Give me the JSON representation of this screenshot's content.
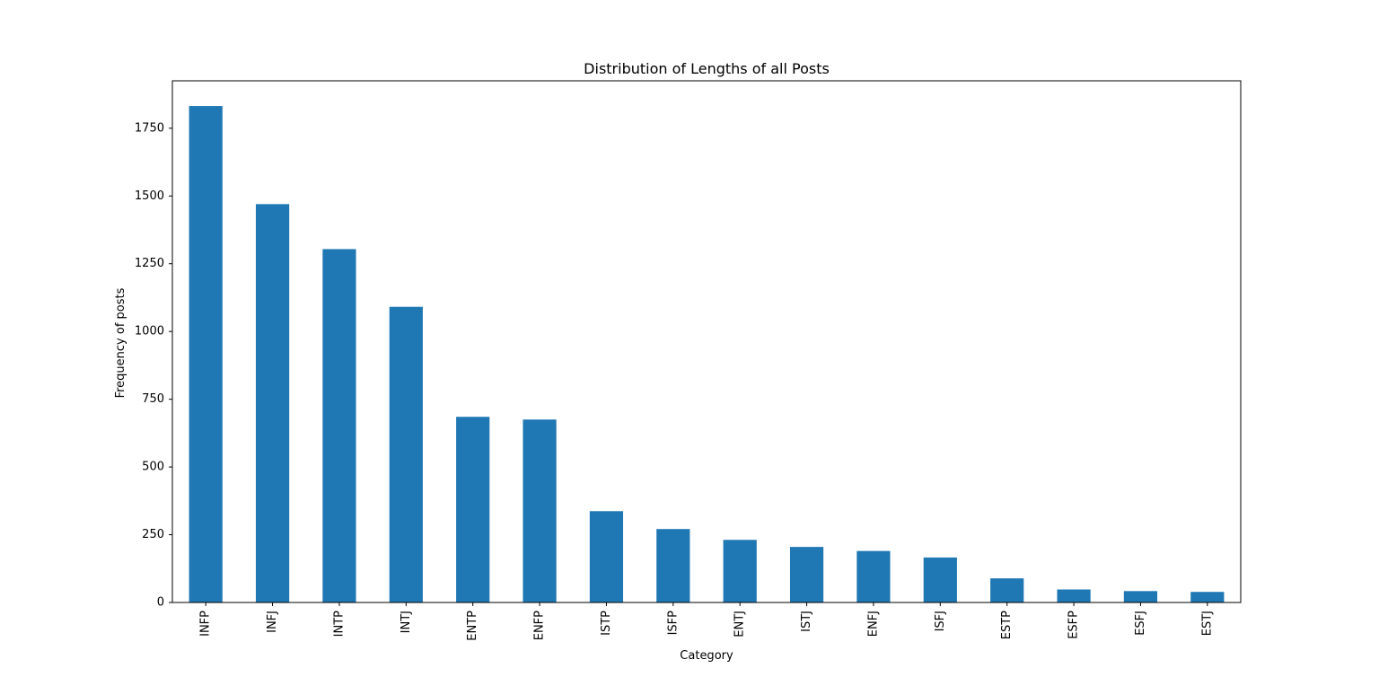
{
  "chart_data": {
    "type": "bar",
    "title": "Distribution of Lengths of all Posts",
    "xlabel": "Category",
    "ylabel": "Frequency of posts",
    "categories": [
      "INFP",
      "INFJ",
      "INTP",
      "INTJ",
      "ENTP",
      "ENFP",
      "ISTP",
      "ISFP",
      "ENTJ",
      "ISTJ",
      "ENFJ",
      "ISFJ",
      "ESTP",
      "ESFP",
      "ESFJ",
      "ESTJ"
    ],
    "values": [
      1832,
      1470,
      1304,
      1091,
      685,
      675,
      337,
      271,
      231,
      205,
      190,
      166,
      89,
      48,
      42,
      39
    ],
    "ylim": [
      0,
      1925
    ],
    "yticks": [
      0,
      250,
      500,
      750,
      1000,
      1250,
      1500,
      1750
    ],
    "grid": false,
    "legend": "none",
    "bar_color": "#1f77b4"
  }
}
